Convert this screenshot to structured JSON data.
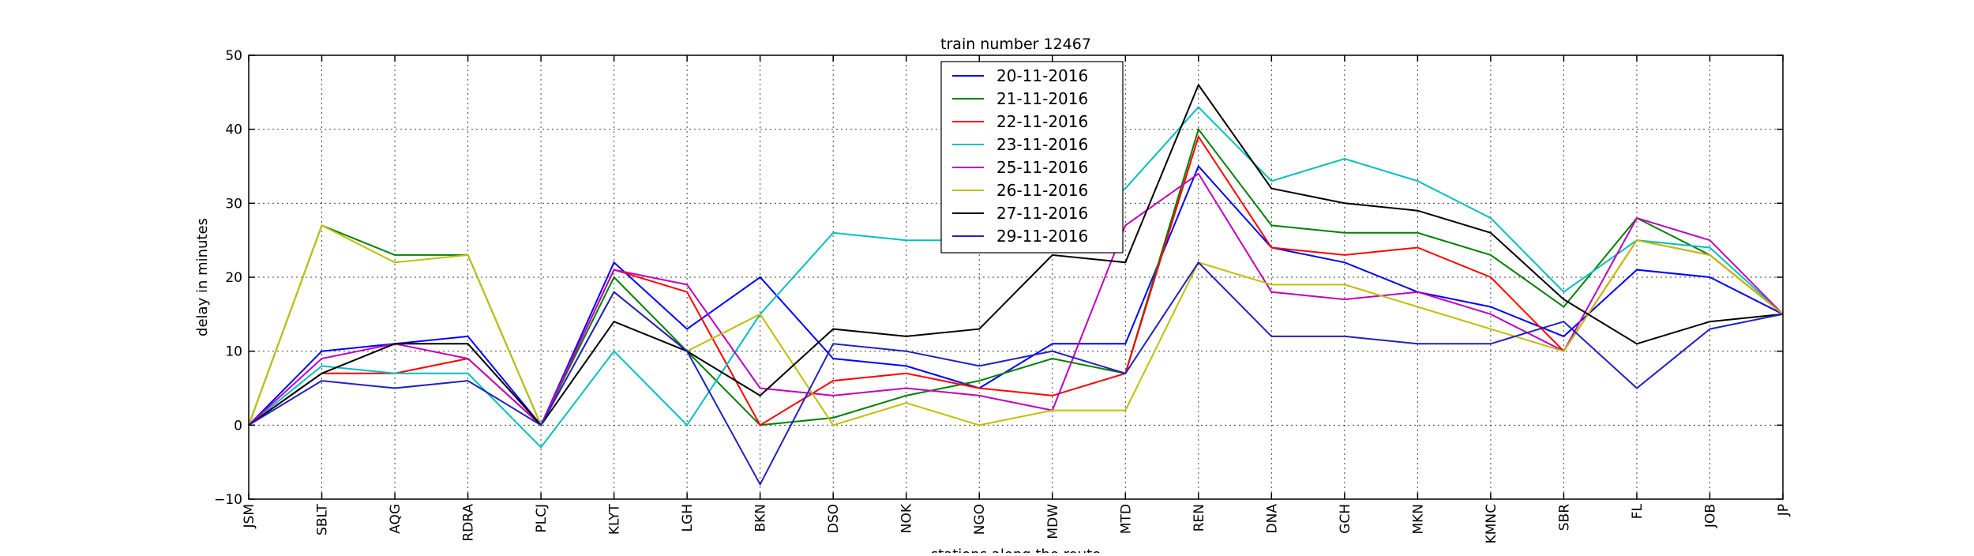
{
  "chart_data": {
    "type": "line",
    "title": "train number 12467",
    "xlabel": "stations along the route",
    "ylabel": "delay in minutes",
    "ylim": [
      -10,
      50
    ],
    "yticks": [
      -10,
      0,
      10,
      20,
      30,
      40,
      50
    ],
    "grid": true,
    "legend_position": "top-center",
    "categories": [
      "JSM",
      "SBLT",
      "AQG",
      "RDRA",
      "PLCJ",
      "KLYT",
      "LGH",
      "BKN",
      "DSO",
      "NOK",
      "NGO",
      "MDW",
      "MTD",
      "REN",
      "DNA",
      "GCH",
      "MKN",
      "KMNC",
      "SBR",
      "FL",
      "JOB",
      "JP"
    ],
    "series": [
      {
        "name": "20-11-2016",
        "color": "#0000ff",
        "values": [
          0,
          10,
          11,
          12,
          0,
          22,
          13,
          20,
          9,
          8,
          5,
          11,
          11,
          35,
          24,
          22,
          18,
          16,
          12,
          21,
          20,
          15
        ]
      },
      {
        "name": "21-11-2016",
        "color": "#008000",
        "values": [
          0,
          27,
          23,
          23,
          0,
          20,
          10,
          0,
          1,
          4,
          6,
          9,
          7,
          40,
          27,
          26,
          26,
          23,
          16,
          28,
          23,
          15
        ]
      },
      {
        "name": "22-11-2016",
        "color": "#ff0000",
        "values": [
          0,
          7,
          7,
          9,
          0,
          21,
          18,
          0,
          6,
          7,
          5,
          4,
          7,
          39,
          24,
          23,
          24,
          20,
          10,
          25,
          23,
          15
        ]
      },
      {
        "name": "23-11-2016",
        "color": "#00bfbf",
        "values": [
          0,
          8,
          7,
          7,
          -3,
          10,
          0,
          15,
          26,
          25,
          25,
          26,
          32,
          43,
          33,
          36,
          33,
          28,
          18,
          25,
          24,
          15
        ]
      },
      {
        "name": "25-11-2016",
        "color": "#bf00bf",
        "values": [
          0,
          9,
          11,
          9,
          0,
          21,
          19,
          5,
          4,
          5,
          4,
          2,
          27,
          34,
          18,
          17,
          18,
          15,
          10,
          28,
          25,
          15
        ]
      },
      {
        "name": "26-11-2016",
        "color": "#bfbf00",
        "values": [
          0,
          27,
          22,
          23,
          0,
          18,
          10,
          15,
          0,
          3,
          0,
          2,
          2,
          22,
          19,
          19,
          16,
          13,
          10,
          25,
          23,
          15
        ]
      },
      {
        "name": "27-11-2016",
        "color": "#000000",
        "values": [
          0,
          7,
          11,
          11,
          0,
          14,
          10,
          4,
          13,
          12,
          13,
          23,
          22,
          46,
          32,
          30,
          29,
          26,
          17,
          11,
          14,
          15
        ]
      },
      {
        "name": "29-11-2016",
        "color": "#2020c0",
        "values": [
          0,
          6,
          5,
          6,
          0,
          18,
          10,
          -8,
          11,
          10,
          8,
          10,
          7,
          22,
          12,
          12,
          11,
          11,
          14,
          5,
          13,
          15
        ]
      }
    ]
  }
}
